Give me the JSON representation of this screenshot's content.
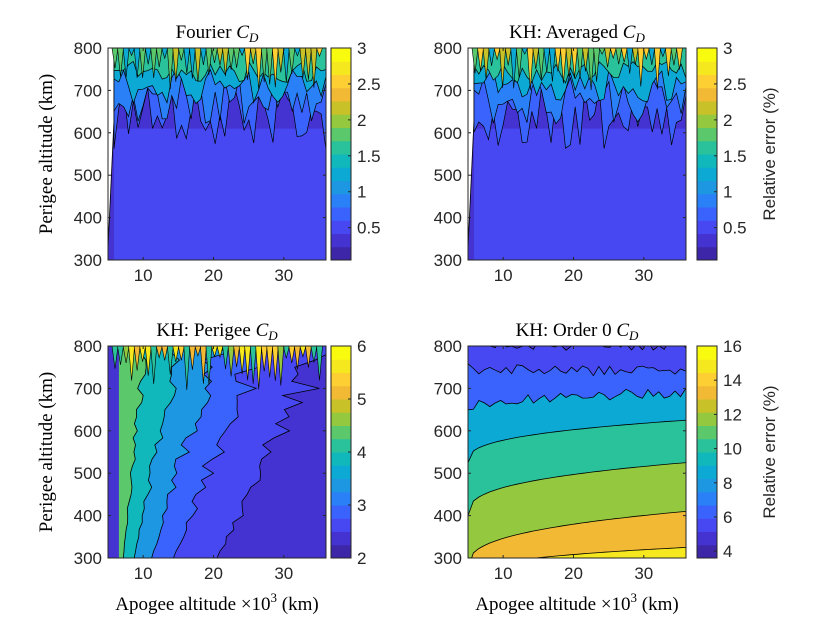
{
  "figure": {
    "xlabel": "Apogee altitude ×10",
    "xlabel_exp": "3",
    "xlabel_unit": " (km)",
    "ylabel": "Perigee altitude (km)",
    "colorbar_label": "Relative error (%)"
  },
  "colormap": [
    "#3e26a8",
    "#4433d1",
    "#4748f2",
    "#3a63fe",
    "#2a80f6",
    "#1e97e2",
    "#0ba9d4",
    "#10b8bb",
    "#2ac29a",
    "#5bc86b",
    "#93c83f",
    "#c8c128",
    "#f2b935",
    "#fdcf32",
    "#f5e81e",
    "#f9fb0e"
  ],
  "chart_data": [
    {
      "type": "contour",
      "title_prefix": "Fourier ",
      "title_sym": "C",
      "title_sub": "D",
      "x_ticks": [
        "10",
        "20",
        "30"
      ],
      "y_ticks": [
        "300",
        "400",
        "500",
        "600",
        "700",
        "800"
      ],
      "xlim": [
        5,
        36
      ],
      "ylim": [
        300,
        800
      ],
      "colorbar_ticks": [
        "0.5",
        "1",
        "1.5",
        "2",
        "2.5",
        "3"
      ],
      "clim": [
        0.05,
        3
      ],
      "show_xlabel": false,
      "show_ylabel": true,
      "show_cblabel": false
    },
    {
      "type": "contour",
      "title_prefix": "KH: Averaged ",
      "title_sym": "C",
      "title_sub": "D",
      "x_ticks": [
        "10",
        "20",
        "30"
      ],
      "y_ticks": [
        "300",
        "400",
        "500",
        "600",
        "700",
        "800"
      ],
      "xlim": [
        5,
        36
      ],
      "ylim": [
        300,
        800
      ],
      "colorbar_ticks": [
        "0.5",
        "1",
        "1.5",
        "2",
        "2.5",
        "3"
      ],
      "clim": [
        0.05,
        3
      ],
      "show_xlabel": false,
      "show_ylabel": false,
      "show_cblabel": true
    },
    {
      "type": "contour",
      "title_prefix": "KH: Perigee ",
      "title_sym": "C",
      "title_sub": "D",
      "x_ticks": [
        "10",
        "20",
        "30"
      ],
      "y_ticks": [
        "300",
        "400",
        "500",
        "600",
        "700",
        "800"
      ],
      "xlim": [
        5,
        36
      ],
      "ylim": [
        300,
        800
      ],
      "colorbar_ticks": [
        "2",
        "3",
        "4",
        "5",
        "6"
      ],
      "clim": [
        2,
        6
      ],
      "show_xlabel": true,
      "show_ylabel": true,
      "show_cblabel": false
    },
    {
      "type": "contour",
      "title_prefix": "KH: Order 0 ",
      "title_sym": "C",
      "title_sub": "D",
      "x_ticks": [
        "10",
        "20",
        "30"
      ],
      "y_ticks": [
        "300",
        "400",
        "500",
        "600",
        "700",
        "800"
      ],
      "xlim": [
        5,
        36
      ],
      "ylim": [
        300,
        800
      ],
      "colorbar_ticks": [
        "4",
        "6",
        "8",
        "10",
        "12",
        "14",
        "16"
      ],
      "clim": [
        3.6,
        16
      ],
      "show_xlabel": true,
      "show_ylabel": false,
      "show_cblabel": true
    }
  ]
}
